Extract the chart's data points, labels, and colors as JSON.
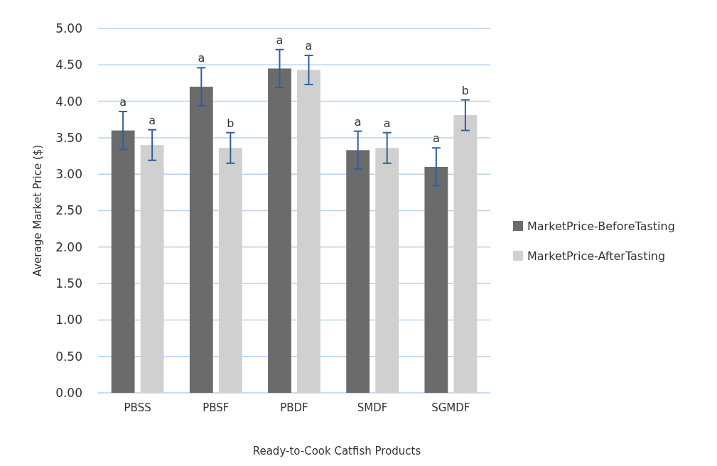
{
  "chart_data": {
    "type": "bar",
    "xlabel": "Ready-to-Cook Catfish Products",
    "ylabel": "Average Market Price ($)",
    "categories": [
      "PBSS",
      "PBSF",
      "PBDF",
      "SMDF",
      "SGMDF"
    ],
    "series": [
      {
        "name": "MarketPrice-BeforeTasting",
        "color": "#6b6b6b",
        "values": [
          3.6,
          4.2,
          4.45,
          3.33,
          3.1
        ],
        "errors": [
          0.26,
          0.26,
          0.26,
          0.26,
          0.26
        ],
        "value_labels": [
          "a",
          "a",
          "a",
          "a",
          "a"
        ]
      },
      {
        "name": "MarketPrice-AfterTasting",
        "color": "#d0d0d0",
        "values": [
          3.4,
          3.36,
          4.43,
          3.36,
          3.81
        ],
        "errors": [
          0.21,
          0.21,
          0.2,
          0.21,
          0.21
        ],
        "value_labels": [
          "a",
          "b",
          "a",
          "a",
          "b"
        ]
      }
    ],
    "ylim": [
      0,
      5
    ],
    "yticks": [
      {
        "value": 0,
        "label": "0.00"
      },
      {
        "value": 0.5,
        "label": "0.50"
      },
      {
        "value": 1,
        "label": "1.00"
      },
      {
        "value": 1.5,
        "label": "1.50"
      },
      {
        "value": 2,
        "label": "2.00"
      },
      {
        "value": 2.5,
        "label": "2.50"
      },
      {
        "value": 3,
        "label": "3.00"
      },
      {
        "value": 3.5,
        "label": "3.50"
      },
      {
        "value": 4,
        "label": "4.00"
      },
      {
        "value": 4.5,
        "label": "4.50"
      },
      {
        "value": 5,
        "label": "5.00"
      }
    ],
    "grid": "y",
    "legend": "right"
  }
}
